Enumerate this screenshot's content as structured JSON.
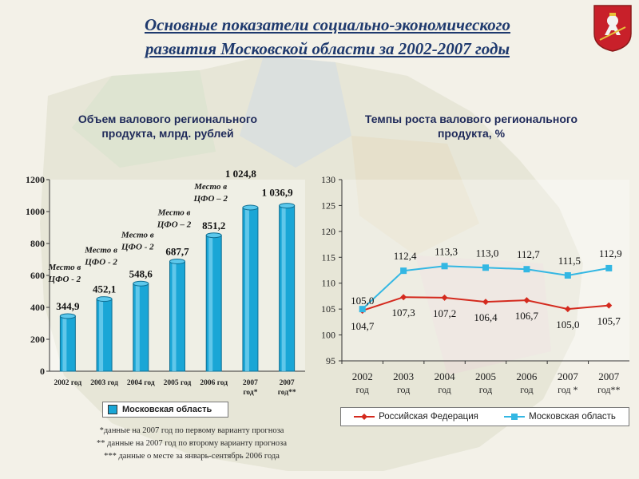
{
  "title": {
    "line1": "Основные показатели социально-экономического",
    "line2": "развития Московской области за 2002-2007 годы"
  },
  "colors": {
    "bar": "#1aa6d6",
    "russia": "#d42a1e",
    "moscow_region": "#33b7e3",
    "title": "#1f3a6e"
  },
  "chart_data": [
    {
      "type": "bar",
      "title": "Объем валового регионального продукта, млрд. рублей",
      "title_line1": "Объем валового регионального",
      "title_line2": "продукта, млрд. рублей",
      "categories": [
        "2002 год",
        "2003 год",
        "2004 год",
        "2005 год",
        "2006 год",
        "2007 год*",
        "2007 год**"
      ],
      "series": [
        {
          "name": "Московская область",
          "values": [
            344.9,
            452.1,
            548.6,
            687.7,
            851.2,
            1024.8,
            1036.9
          ]
        }
      ],
      "value_labels": [
        "344,9",
        "452,1",
        "548,6",
        "687,7",
        "851,2",
        "1 024,8",
        "1 036,9"
      ],
      "annotations": [
        {
          "category": "2002 год",
          "line1": "Место в",
          "line2": "ЦФО - 2"
        },
        {
          "category": "2003 год",
          "line1": "Место в",
          "line2": "ЦФО - 2"
        },
        {
          "category": "2004 год",
          "line1": "Место в",
          "line2": "ЦФО - 2"
        },
        {
          "category": "2005 год",
          "line1": "Место в",
          "line2": "ЦФО – 2"
        },
        {
          "category": "2006 год",
          "line1": "Место в",
          "line2": "ЦФО – 2"
        }
      ],
      "ylim": [
        0,
        1200
      ],
      "yticks": [
        "0",
        "200",
        "400",
        "600",
        "800",
        "1000",
        "1200"
      ],
      "legend": "Московская область"
    },
    {
      "type": "line",
      "title": "Темпы роста валового регионального продукта, %",
      "title_line1": "Темпы роста валового регионального",
      "title_line2": "продукта, %",
      "x": [
        "2002 год",
        "2003 год",
        "2004 год",
        "2005 год",
        "2006 год",
        "2007 год *",
        "2007 год**"
      ],
      "x_year": [
        "2002",
        "2003",
        "2004",
        "2005",
        "2006",
        "2007",
        "2007"
      ],
      "x_sub": [
        "год",
        "год",
        "год",
        "год",
        "год",
        "год *",
        "год**"
      ],
      "series": [
        {
          "name": "Российская Федерация",
          "values": [
            104.7,
            107.3,
            107.2,
            106.4,
            106.7,
            105.0,
            105.7
          ],
          "labels": [
            "104,7",
            "107,3",
            "107,2",
            "106,4",
            "106,7",
            "105,0",
            "105,7"
          ]
        },
        {
          "name": "Московская область",
          "values": [
            105.0,
            112.4,
            113.3,
            113.0,
            112.7,
            111.5,
            112.9
          ],
          "labels": [
            "105,0",
            "112,4",
            "113,3",
            "113,0",
            "112,7",
            "111,5",
            "112,9"
          ]
        }
      ],
      "ylim": [
        95,
        130
      ],
      "yticks": [
        "95",
        "100",
        "105",
        "110",
        "115",
        "120",
        "125",
        "130"
      ]
    }
  ],
  "footnotes": [
    "*данные на 2007 год по первому варианту прогноза",
    "** данные на 2007 год по второму варианту прогноза",
    "*** данные о месте за январь-сентябрь 2006 года"
  ]
}
